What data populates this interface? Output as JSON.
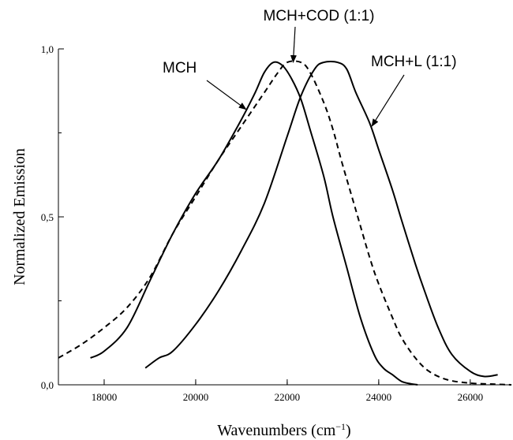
{
  "chart_data": {
    "type": "line",
    "title": "",
    "xlabel": "Wavenumbers (cm",
    "xlabel_sup": "−1",
    "xlabel_close": ")",
    "ylabel": "Normalized Emission",
    "xlim": [
      17000,
      26900
    ],
    "ylim": [
      0,
      1.0
    ],
    "xticks": [
      18000,
      20000,
      22000,
      24000,
      26000
    ],
    "xtick_labels": [
      "18000",
      "20000",
      "22000",
      "24000",
      "26000"
    ],
    "yticks": [
      0,
      0.5,
      1.0
    ],
    "ytick_labels": [
      "0,0",
      "0,5",
      "1,0"
    ],
    "grid": false,
    "series": [
      {
        "name": "MCH",
        "style": "solid",
        "x": [
          17700,
          18000,
          18500,
          19000,
          19500,
          20000,
          20500,
          21000,
          21300,
          21500,
          21700,
          21900,
          22100,
          22300,
          22500,
          22800,
          23000,
          23300,
          23600,
          23900,
          24100,
          24300,
          24500,
          24700,
          24850
        ],
        "y": [
          0.08,
          0.1,
          0.17,
          0.31,
          0.45,
          0.57,
          0.67,
          0.79,
          0.87,
          0.93,
          0.96,
          0.95,
          0.91,
          0.85,
          0.76,
          0.62,
          0.5,
          0.35,
          0.2,
          0.09,
          0.05,
          0.03,
          0.01,
          0.003,
          0.0
        ]
      },
      {
        "name": "MCH+COD (1:1)",
        "style": "dashed",
        "x": [
          17000,
          17500,
          18000,
          18500,
          19000,
          19500,
          20000,
          20500,
          21000,
          21500,
          21800,
          22000,
          22300,
          22500,
          22800,
          23000,
          23200,
          23500,
          23800,
          24000,
          24300,
          24500,
          24800,
          25100,
          25500,
          26000,
          26500,
          26900
        ],
        "y": [
          0.08,
          0.12,
          0.17,
          0.23,
          0.32,
          0.45,
          0.56,
          0.67,
          0.77,
          0.87,
          0.93,
          0.96,
          0.96,
          0.93,
          0.84,
          0.76,
          0.66,
          0.52,
          0.38,
          0.3,
          0.2,
          0.14,
          0.08,
          0.04,
          0.015,
          0.005,
          0.002,
          0.0
        ]
      },
      {
        "name": "MCH+L (1:1)",
        "style": "solid",
        "x": [
          18900,
          19200,
          19500,
          20000,
          20500,
          21000,
          21500,
          22000,
          22300,
          22600,
          22800,
          23100,
          23300,
          23500,
          23800,
          24000,
          24300,
          24500,
          24800,
          25000,
          25300,
          25600,
          26000,
          26300,
          26600
        ],
        "y": [
          0.05,
          0.08,
          0.1,
          0.18,
          0.28,
          0.4,
          0.54,
          0.74,
          0.86,
          0.94,
          0.96,
          0.96,
          0.94,
          0.87,
          0.78,
          0.7,
          0.58,
          0.49,
          0.36,
          0.28,
          0.17,
          0.09,
          0.04,
          0.025,
          0.03
        ]
      }
    ],
    "annotations": [
      {
        "text": "MCH",
        "target_series": 0,
        "arrow_to": [
          21100,
          0.82
        ]
      },
      {
        "text": "MCH+COD (1:1)",
        "target_series": 1,
        "arrow_to": [
          22130,
          0.96
        ]
      },
      {
        "text": "MCH+L (1:1)",
        "target_series": 2,
        "arrow_to": [
          23850,
          0.77
        ]
      }
    ]
  }
}
